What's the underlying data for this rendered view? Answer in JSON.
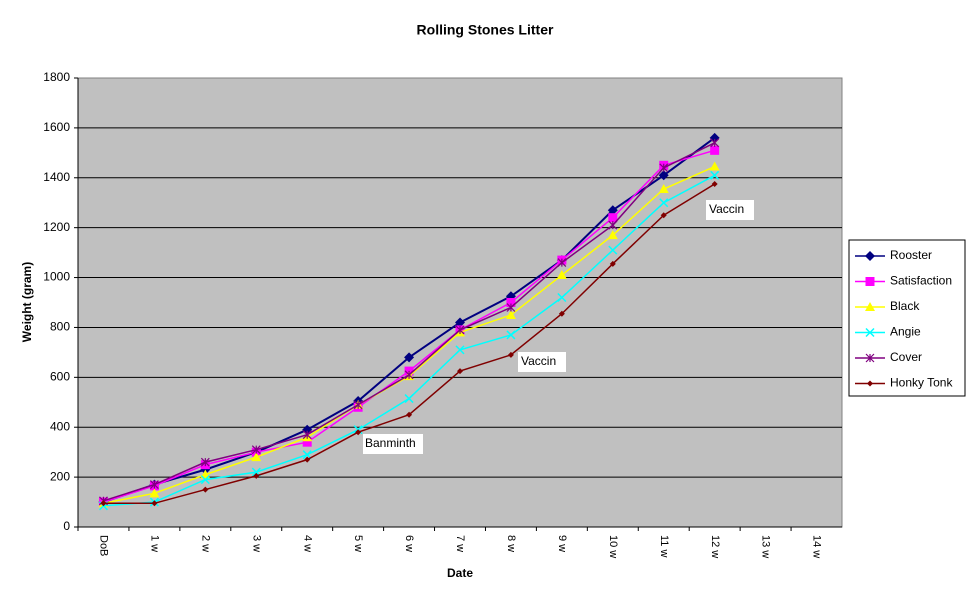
{
  "chart_data": {
    "type": "line",
    "title": "Rolling Stones Litter",
    "x_label": "Date",
    "y_label": "Weight (gram)",
    "categories": [
      "DoB",
      "1 w",
      "2 w",
      "3 w",
      "4 w",
      "5 w",
      "6 w",
      "7 w",
      "8 w",
      "9 w",
      "10 w",
      "11 w",
      "12 w",
      "13 w",
      "14 w"
    ],
    "ylim": [
      0,
      1800
    ],
    "yticks": [
      0,
      200,
      400,
      600,
      800,
      1000,
      1200,
      1400,
      1600,
      1800
    ],
    "grid": true,
    "legend": "right",
    "annotations": [
      "Banminth",
      "Vaccin",
      "Vaccin"
    ],
    "series": [
      {
        "name": "Rooster",
        "color": "#000080",
        "marker": "diamond",
        "values": [
          100,
          170,
          230,
          300,
          390,
          505,
          680,
          820,
          925,
          1070,
          1270,
          1410,
          1560,
          null,
          null
        ]
      },
      {
        "name": "Satisfaction",
        "color": "#ff00ff",
        "marker": "square",
        "values": [
          100,
          165,
          250,
          300,
          340,
          480,
          625,
          790,
          900,
          1070,
          1240,
          1450,
          1510,
          null,
          null
        ]
      },
      {
        "name": "Black",
        "color": "#ffff00",
        "marker": "triangle",
        "values": [
          95,
          135,
          210,
          280,
          360,
          490,
          605,
          780,
          850,
          1010,
          1170,
          1355,
          1445,
          null,
          null
        ]
      },
      {
        "name": "Angie",
        "color": "#00ffff",
        "marker": "x",
        "values": [
          85,
          100,
          190,
          220,
          290,
          390,
          515,
          710,
          770,
          920,
          1110,
          1300,
          1410,
          null,
          null
        ]
      },
      {
        "name": "Cover",
        "color": "#800080",
        "marker": "star",
        "values": [
          105,
          170,
          260,
          310,
          370,
          490,
          610,
          790,
          880,
          1060,
          1210,
          1440,
          1540,
          null,
          null
        ]
      },
      {
        "name": "Honky Tonk",
        "color": "#800000",
        "marker": "small-diamond",
        "values": [
          95,
          95,
          150,
          205,
          270,
          380,
          450,
          625,
          690,
          855,
          1055,
          1250,
          1375,
          null,
          null
        ]
      }
    ]
  }
}
